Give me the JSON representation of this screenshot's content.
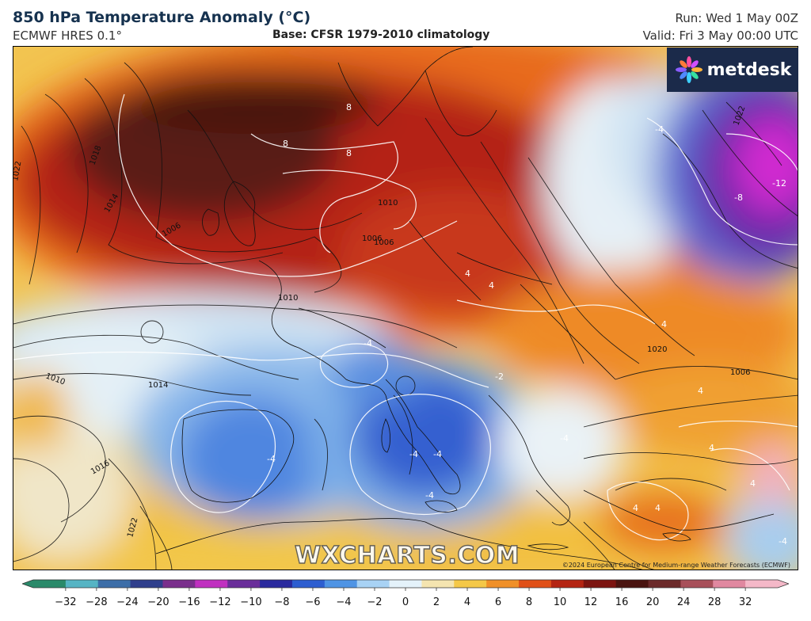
{
  "header": {
    "title": "850 hPa Temperature Anomaly (°C)",
    "model": "ECMWF HRES 0.1°",
    "base": "Base: CFSR 1979-2010 climatology",
    "run": "Run: Wed 1 May 00Z",
    "valid": "Valid: Fri 3 May 00:00 UTC"
  },
  "logo": {
    "text": "metdesk",
    "icon": "flower-icon"
  },
  "watermark": "WXCHARTS.COM",
  "copyright": "©2024 European Centre for Medium-range Weather Forecasts (ECMWF)",
  "colorbar": {
    "ticks": [
      "−32",
      "−28",
      "−24",
      "−20",
      "−16",
      "−12",
      "−10",
      "−8",
      "−6",
      "−4",
      "−2",
      "0",
      "2",
      "4",
      "6",
      "8",
      "10",
      "12",
      "16",
      "20",
      "24",
      "28",
      "32"
    ],
    "colors": [
      "#2a8a6a",
      "#56b4c4",
      "#3d6ea8",
      "#2f3f8c",
      "#7a2f8c",
      "#c030c0",
      "#6a2e9a",
      "#2a2a9e",
      "#2d5ed0",
      "#4f94e4",
      "#a8d2f4",
      "#e4f2fa",
      "#f4e4b0",
      "#f4c848",
      "#f09028",
      "#e05018",
      "#b42412",
      "#7c1410",
      "#4a1410",
      "#6c2a2a",
      "#a8505a",
      "#e088a0",
      "#f4b8c8"
    ]
  },
  "map": {
    "isobar_labels": [
      "1022",
      "1018",
      "1014",
      "1006",
      "1010",
      "1010",
      "1010",
      "1014",
      "1016",
      "1022",
      "1006",
      "1020",
      "1006",
      "1006",
      "1022"
    ],
    "anomaly_labels": [
      "8",
      "8",
      "8",
      "-4",
      "-4",
      "-4",
      "-4",
      "-4",
      "-4",
      "-8",
      "-12",
      "4",
      "4",
      "4",
      "4",
      "4",
      "-4",
      "4",
      "4",
      "4",
      "-4",
      "-2"
    ],
    "colors": {
      "deep_red": "#4a1410",
      "red": "#a82010",
      "orange": "#e86a1a",
      "yellow": "#f2c040",
      "pale": "#eef4f8",
      "light_blue": "#a8cdee",
      "blue": "#5a8fe0",
      "dark_blue": "#2c54c8",
      "purple": "#6a2aa8",
      "magenta": "#d02ad0"
    }
  }
}
